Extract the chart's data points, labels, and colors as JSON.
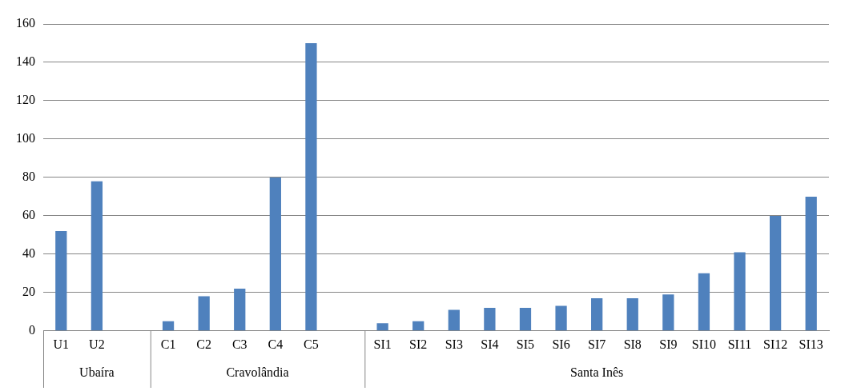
{
  "chart_data": {
    "type": "bar",
    "categories": [
      "U1",
      "U2",
      null,
      "C1",
      "C2",
      "C3",
      "C4",
      "C5",
      null,
      "SI1",
      "SI2",
      "SI3",
      "SI4",
      "SI5",
      "SI6",
      "SI7",
      "SI8",
      "SI9",
      "SI10",
      "SI11",
      "SI12",
      "SI13"
    ],
    "values": [
      52,
      78,
      null,
      5,
      18,
      22,
      80,
      150,
      null,
      4,
      5,
      11,
      12,
      12,
      13,
      17,
      17,
      19,
      30,
      41,
      60,
      70
    ],
    "color": "#4f81bd",
    "ylim": [
      0,
      160
    ],
    "yticks": [
      0,
      20,
      40,
      60,
      80,
      100,
      120,
      140,
      160
    ],
    "grid": "y",
    "legend": false,
    "annotations": [
      "Ubaíra",
      "Cravolândia",
      "Santa Inês"
    ]
  }
}
